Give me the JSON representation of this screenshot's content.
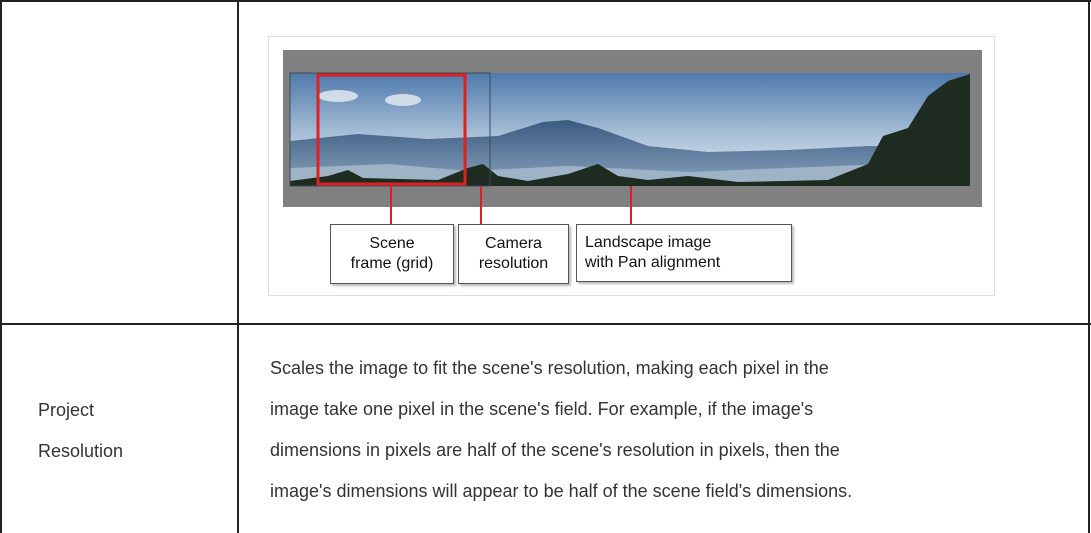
{
  "table": {
    "rows": [
      {
        "image": {
          "callouts": [
            {
              "lines": [
                "Scene",
                "frame (grid)"
              ]
            },
            {
              "lines": [
                "Camera",
                "resolution"
              ]
            },
            {
              "lines": [
                "Landscape image",
                "with Pan alignment"
              ]
            }
          ]
        }
      },
      {
        "label": [
          "Project",
          "Resolution"
        ],
        "description": [
          "Scales the image to fit the scene's resolution, making each pixel in the",
          "image take one pixel in the scene's field. For example, if the image's",
          "dimensions in pixels are half of the scene's resolution in pixels, then the",
          "image's dimensions will appear to be half of the scene field's dimensions."
        ]
      }
    ]
  }
}
